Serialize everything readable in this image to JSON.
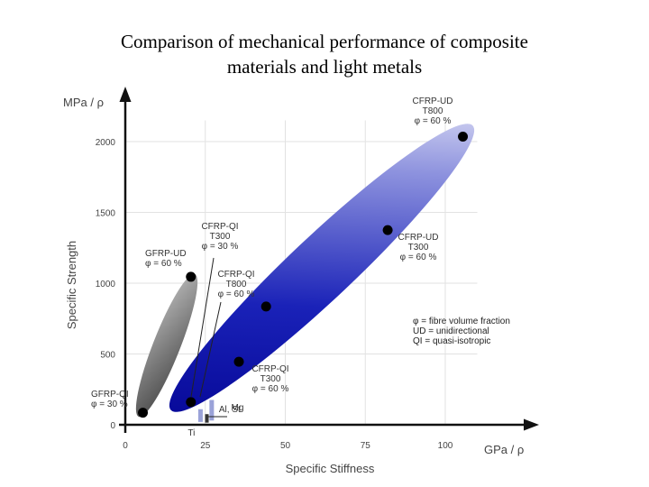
{
  "title_lines": [
    "Comparison of mechanical performance of composite",
    "materials and light metals"
  ],
  "chart_data": {
    "type": "scatter",
    "xlabel": "Specific Stiffness",
    "ylabel": "Specific Strength",
    "x_unit": "GPa / ρ",
    "y_unit": "MPa / ρ",
    "xlim": [
      0,
      110
    ],
    "ylim": [
      0,
      2150
    ],
    "x_ticks": [
      0,
      25,
      50,
      75,
      100
    ],
    "y_ticks": [
      0,
      500,
      1000,
      1500,
      2000
    ],
    "grid": true,
    "points": [
      {
        "label": "GFRP-QI",
        "sub": [
          "φ = 30 %"
        ],
        "x": 5.5,
        "y": 85
      },
      {
        "label": "GFRP-UD",
        "sub": [
          "φ = 60 %"
        ],
        "x": 20.5,
        "y": 1045
      },
      {
        "label": "CFRP-QI",
        "sub": [
          "T300",
          "φ = 30 %"
        ],
        "x": 20.5,
        "y": 160
      },
      {
        "label": "CFRP-QI",
        "sub": [
          "T300",
          "φ = 60 %"
        ],
        "x": 35.5,
        "y": 445
      },
      {
        "label": "CFRP-QI",
        "sub": [
          "T800",
          "φ = 60 %"
        ],
        "x": 44,
        "y": 835
      },
      {
        "label": "CFRP-UD",
        "sub": [
          "T300",
          "φ = 60 %"
        ],
        "x": 82,
        "y": 1375
      },
      {
        "label": "CFRP-UD",
        "sub": [
          "T800",
          "φ = 60 %"
        ],
        "x": 105.5,
        "y": 2035
      }
    ],
    "metals": [
      {
        "label": "Ti",
        "x": 23.5,
        "y_low": 20,
        "y_high": 110
      },
      {
        "label": "Al, St",
        "x": 27,
        "y_low": 30,
        "y_high": 175
      },
      {
        "label": "Mg",
        "x": 25.5,
        "y_low": 15,
        "y_high": 75
      }
    ],
    "legend": [
      "φ = fibre volume fraction",
      "UD = unidirectional",
      "QI = quasi-isotropic"
    ]
  }
}
